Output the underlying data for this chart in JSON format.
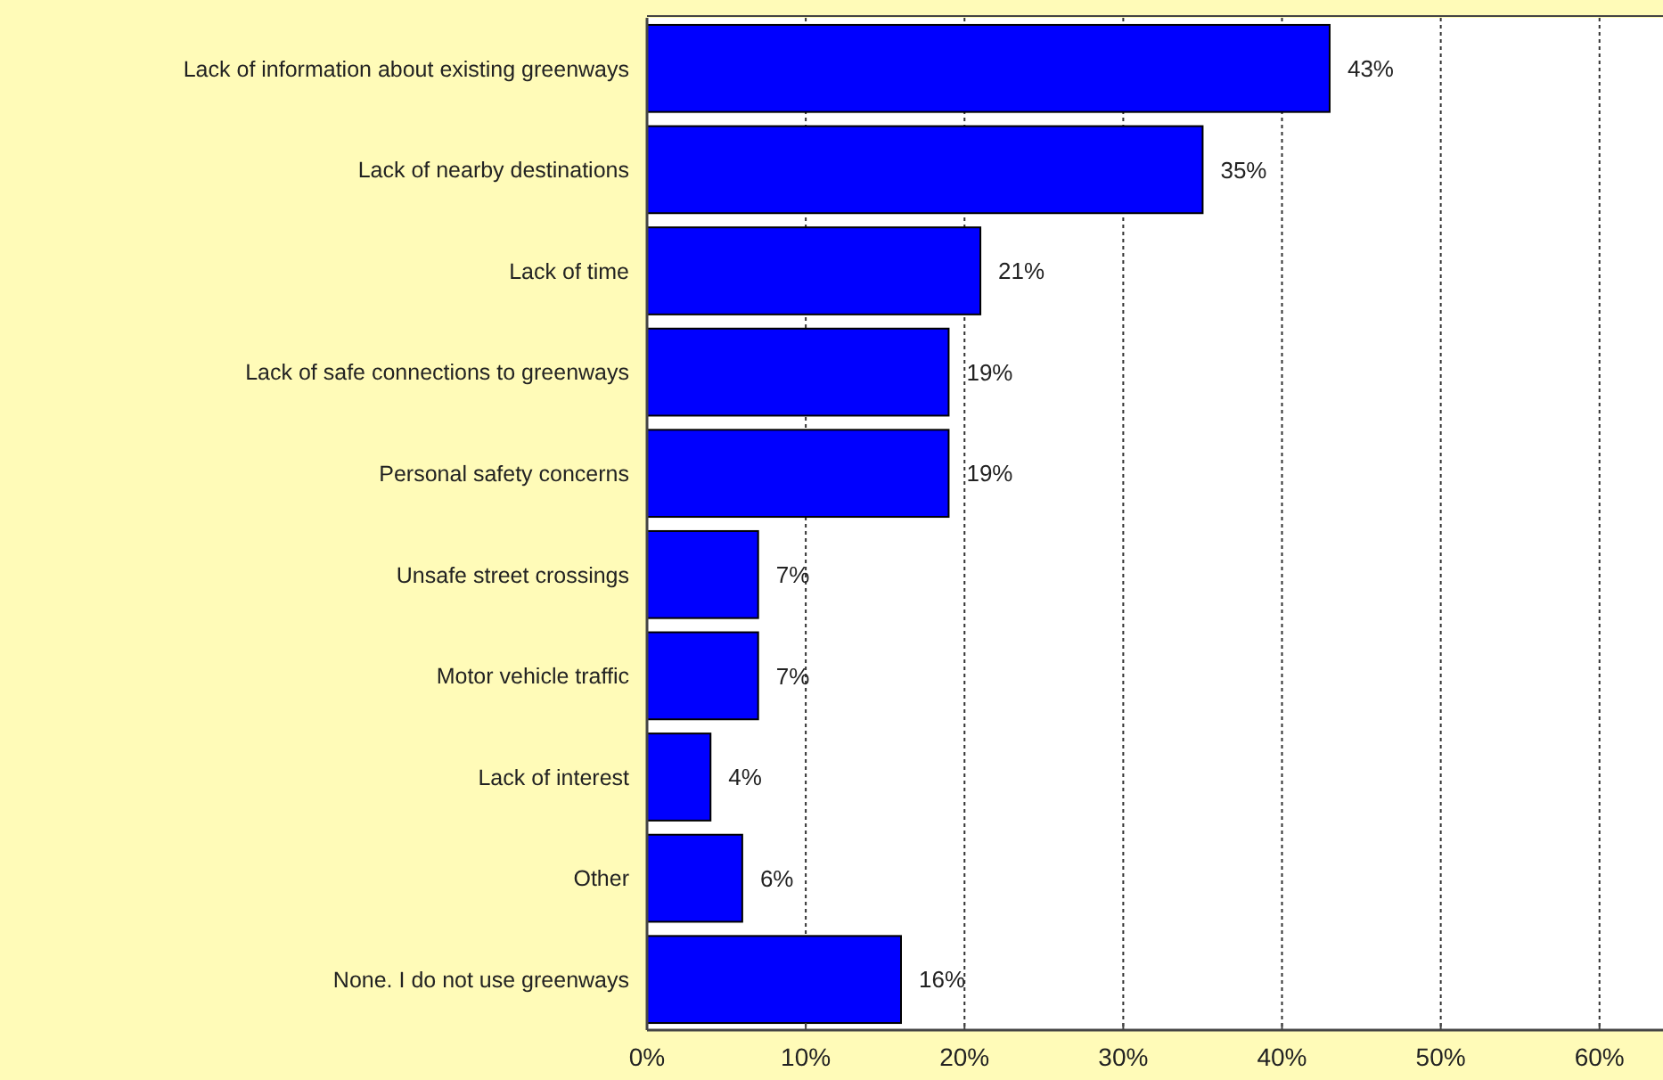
{
  "chart_data": {
    "type": "bar",
    "orientation": "horizontal",
    "categories": [
      "Lack of information about existing greenways",
      "Lack of nearby destinations",
      "Lack of time",
      "Lack of safe connections to greenways",
      "Personal safety concerns",
      "Unsafe street crossings",
      "Motor vehicle traffic",
      "Lack of interest",
      "Other",
      "None. I do not use greenways"
    ],
    "values": [
      43,
      35,
      21,
      19,
      19,
      7,
      7,
      4,
      6,
      16
    ],
    "value_labels": [
      "43%",
      "35%",
      "21%",
      "19%",
      "19%",
      "7%",
      "7%",
      "4%",
      "6%",
      "16%"
    ],
    "color": "#0000ff",
    "xlim": [
      0,
      64
    ],
    "xticks": [
      {
        "value": 0,
        "label": "0%"
      },
      {
        "value": 10,
        "label": "10%"
      },
      {
        "value": 20,
        "label": "20%"
      },
      {
        "value": 30,
        "label": "30%"
      },
      {
        "value": 40,
        "label": "40%"
      },
      {
        "value": 50,
        "label": "50%"
      },
      {
        "value": 60,
        "label": "60%"
      }
    ],
    "grid": "x"
  }
}
